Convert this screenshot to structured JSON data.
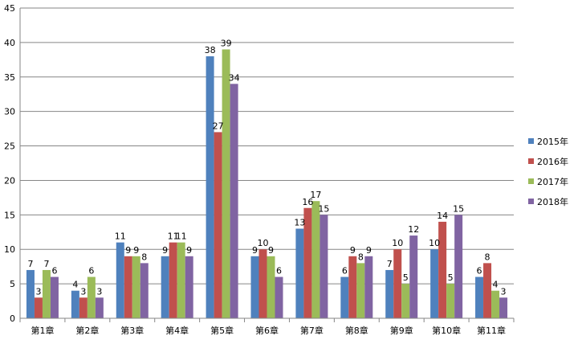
{
  "chart_data": {
    "type": "bar",
    "categories": [
      "第1章",
      "第2章",
      "第3章",
      "第4章",
      "第5章",
      "第6章",
      "第7章",
      "第8章",
      "第9章",
      "第10章",
      "第11章"
    ],
    "series": [
      {
        "name": "2015年",
        "color": "#4F81BD",
        "values": [
          7,
          4,
          11,
          9,
          38,
          9,
          13,
          6,
          7,
          10,
          6
        ]
      },
      {
        "name": "2016年",
        "color": "#C0504D",
        "values": [
          3,
          3,
          9,
          11,
          27,
          10,
          16,
          9,
          10,
          14,
          8
        ]
      },
      {
        "name": "2017年",
        "color": "#9BBB59",
        "values": [
          7,
          6,
          9,
          11,
          39,
          9,
          17,
          8,
          5,
          5,
          4
        ]
      },
      {
        "name": "2018年",
        "color": "#8064A2",
        "values": [
          6,
          3,
          8,
          9,
          34,
          6,
          15,
          9,
          12,
          15,
          3
        ]
      }
    ],
    "ylim": [
      0,
      45
    ],
    "yticks": [
      0,
      5,
      10,
      15,
      20,
      25,
      30,
      35,
      40,
      45
    ],
    "grid": true,
    "legend": "right"
  }
}
